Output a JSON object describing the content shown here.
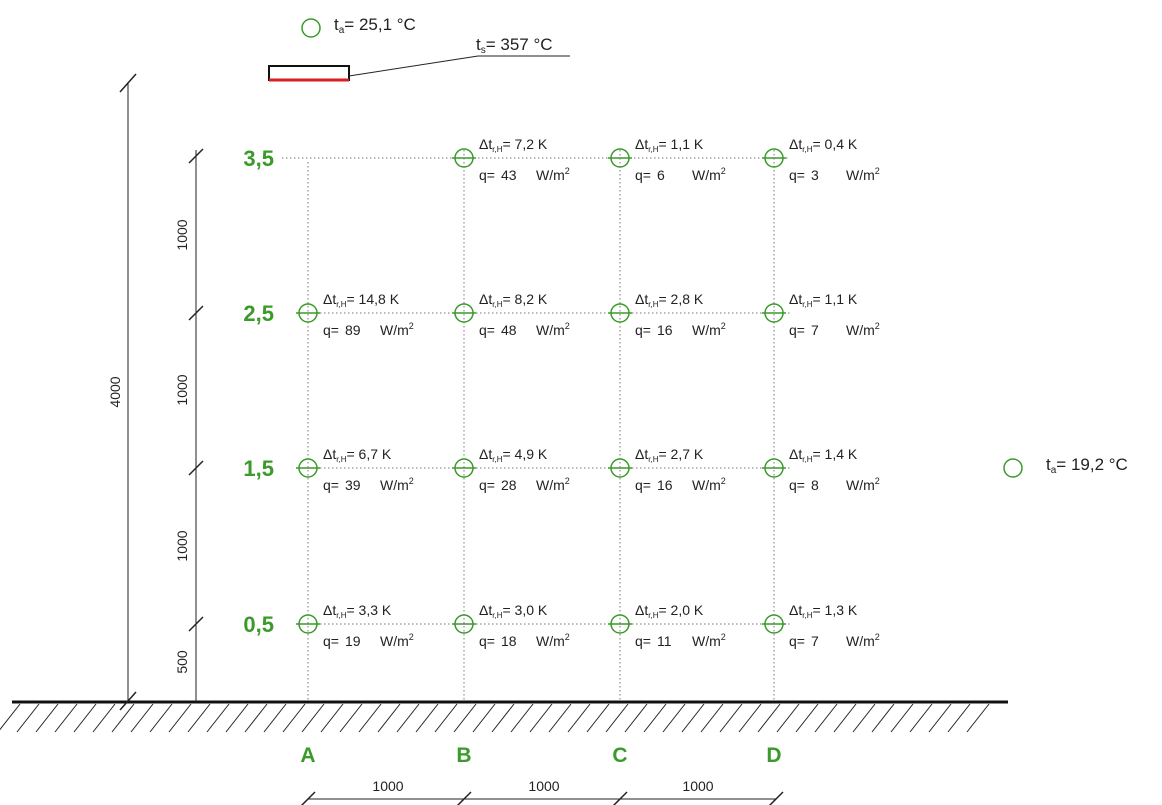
{
  "ambient_top": {
    "sym": "t",
    "sub": "a",
    "text": "= 25,1 °C"
  },
  "ambient_right": {
    "sym": "t",
    "sub": "a",
    "text": "= 19,2 °C"
  },
  "surface": {
    "sym": "t",
    "sub": "s",
    "text": "= 357 °C"
  },
  "levels": [
    "3,5",
    "2,5",
    "1,5",
    "0,5"
  ],
  "columns": [
    "A",
    "B",
    "C",
    "D"
  ],
  "delta_prefix": "Δt",
  "delta_sub": "r,H",
  "q_prefix": "q=",
  "q_unit": "W/m",
  "q_unit_exp": "2",
  "grid": {
    "3,5": {
      "A": null,
      "B": {
        "dt": "= 7,2 K",
        "q": "43"
      },
      "C": {
        "dt": "= 1,1 K",
        "q": "6"
      },
      "D": {
        "dt": "= 0,4 K",
        "q": "3"
      }
    },
    "2,5": {
      "A": {
        "dt": "= 14,8 K",
        "q": "89"
      },
      "B": {
        "dt": "= 8,2 K",
        "q": "48"
      },
      "C": {
        "dt": "= 2,8 K",
        "q": "16"
      },
      "D": {
        "dt": "= 1,1 K",
        "q": "7"
      }
    },
    "1,5": {
      "A": {
        "dt": "= 6,7 K",
        "q": "39"
      },
      "B": {
        "dt": "= 4,9 K",
        "q": "28"
      },
      "C": {
        "dt": "= 2,7 K",
        "q": "16"
      },
      "D": {
        "dt": "= 1,4 K",
        "q": "8"
      }
    },
    "0,5": {
      "A": {
        "dt": "= 3,3 K",
        "q": "19"
      },
      "B": {
        "dt": "= 3,0 K",
        "q": "18"
      },
      "C": {
        "dt": "= 2,0 K",
        "q": "11"
      },
      "D": {
        "dt": "= 1,3 K",
        "q": "7"
      }
    }
  },
  "dims": {
    "total_height": "4000",
    "vertical": [
      "1000",
      "1000",
      "1000",
      "500"
    ],
    "horizontal": [
      "1000",
      "1000",
      "1000"
    ]
  },
  "colors": {
    "marker": "#3a9a2a",
    "heater": "#d42020",
    "line": "#111111",
    "grid": "#777777"
  }
}
